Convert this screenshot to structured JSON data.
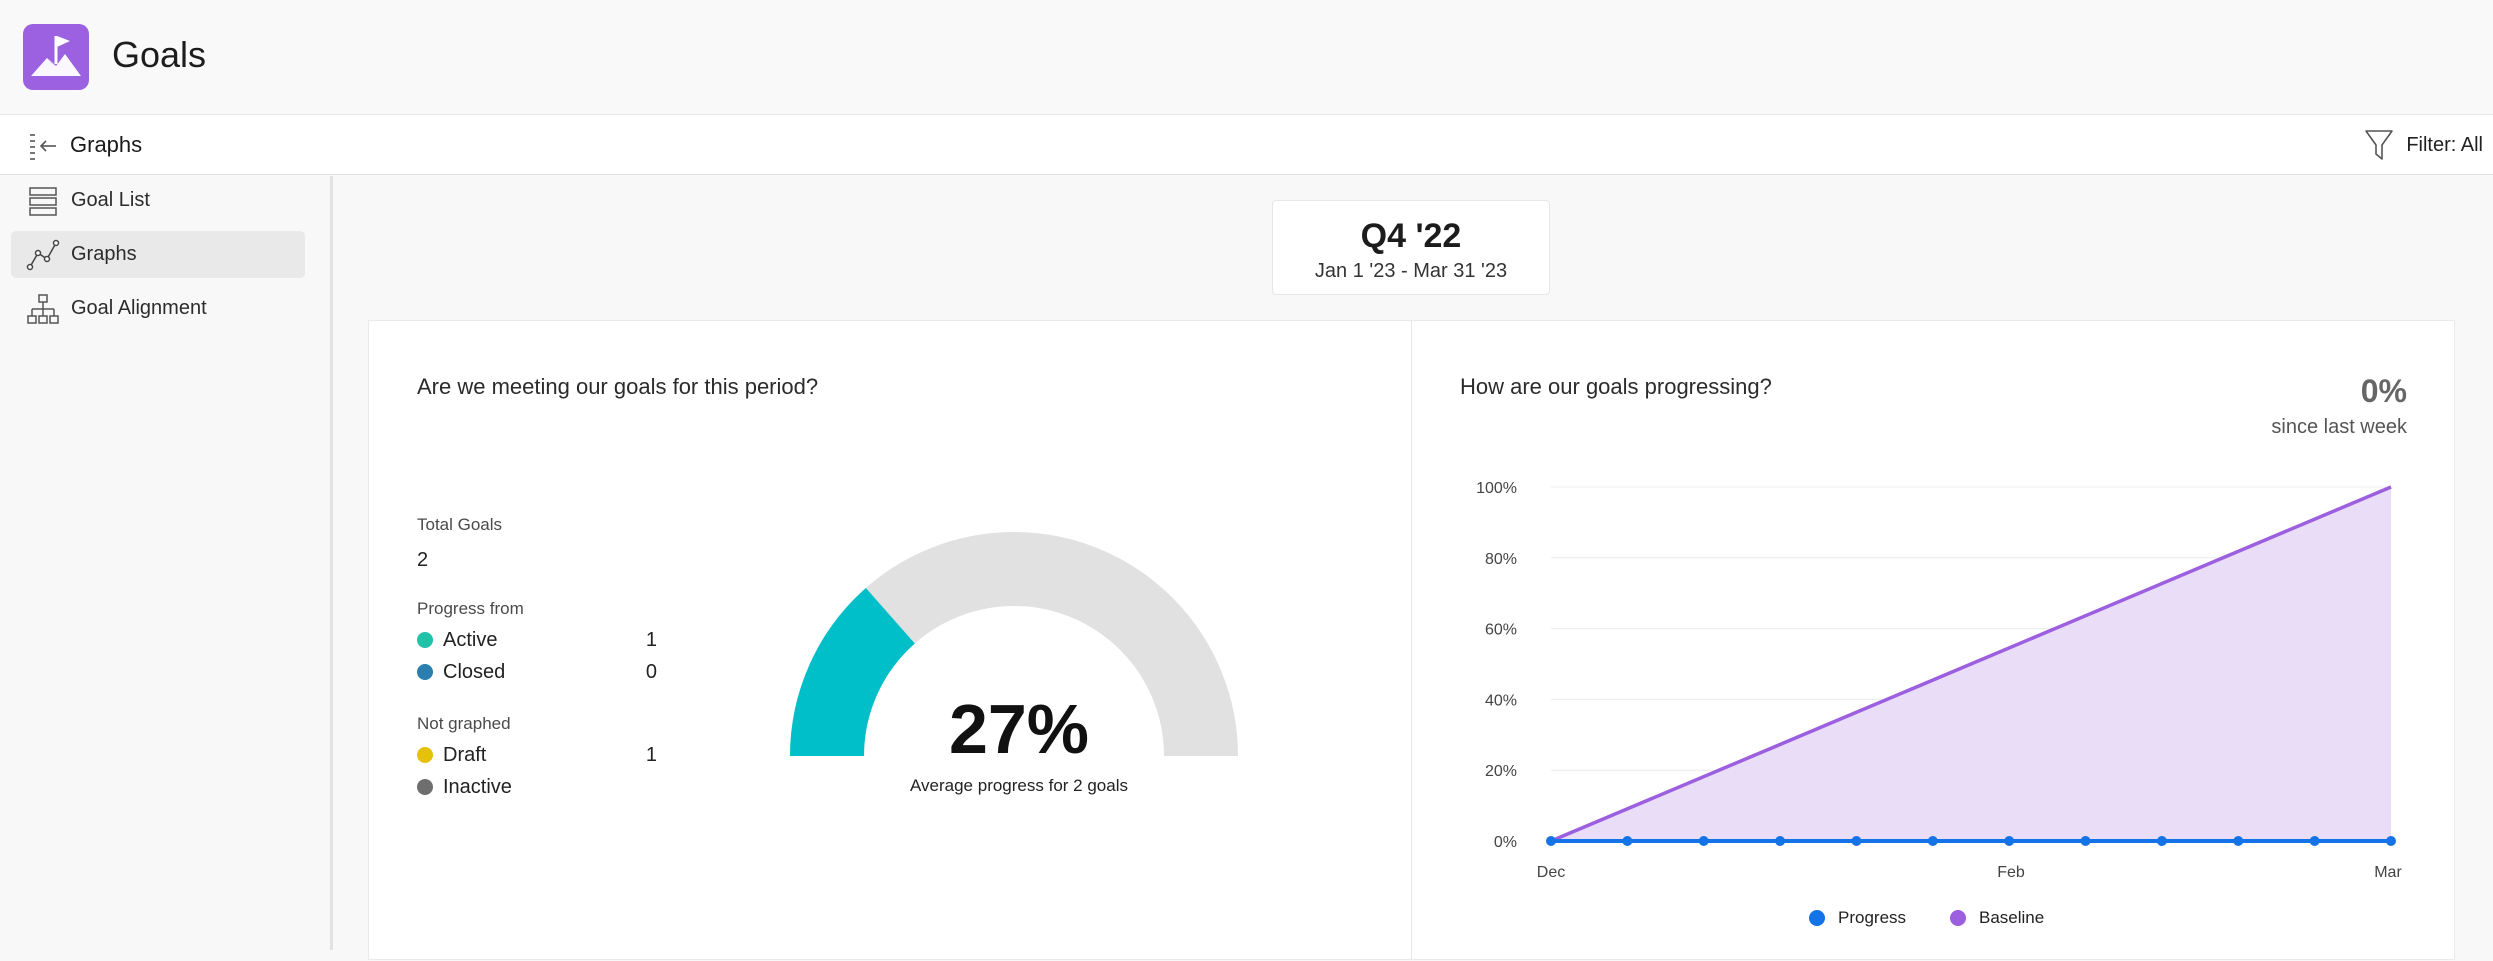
{
  "app": {
    "title": "Goals",
    "icon": "flag-mountain-icon",
    "accent": "#9b61e0"
  },
  "subbar": {
    "title": "Graphs",
    "collapse_icon": "collapse-sidebar-icon",
    "filter_label": "Filter: All",
    "filter_icon": "funnel-icon"
  },
  "sidebar": {
    "items": [
      {
        "label": "Goal List",
        "icon": "list-icon",
        "active": false
      },
      {
        "label": "Graphs",
        "icon": "line-graph-icon",
        "active": true
      },
      {
        "label": "Goal Alignment",
        "icon": "hierarchy-icon",
        "active": false
      }
    ]
  },
  "period": {
    "quarter": "Q4 '22",
    "range": "Jan 1 '23 - Mar 31 '23"
  },
  "meeting": {
    "title": "Are we meeting our goals for this period?",
    "total_label": "Total Goals",
    "total_value": "2",
    "progress_from_label": "Progress from",
    "progress_from": [
      {
        "name": "Active",
        "count": "1",
        "color": "#20c3a8"
      },
      {
        "name": "Closed",
        "count": "0",
        "color": "#2a7fb0"
      }
    ],
    "not_graphed_label": "Not graphed",
    "not_graphed": [
      {
        "name": "Draft",
        "count": "1",
        "color": "#e6c10a"
      },
      {
        "name": "Inactive",
        "count": "",
        "color": "#6e6e6e"
      }
    ],
    "gauge_value": 0.27,
    "gauge_text": "27%",
    "gauge_caption": "Average progress for 2 goals",
    "gauge_fill_color": "#00bfc8",
    "gauge_track_color": "#e1e1e1"
  },
  "progressing": {
    "title": "How are our goals progressing?",
    "change_value": "0%",
    "change_caption": "since last week"
  },
  "chart_data": {
    "type": "area",
    "title": "",
    "xlabel": "",
    "ylabel": "",
    "x_tick_labels": [
      "Dec",
      "Feb",
      "Mar"
    ],
    "y_tick_labels": [
      "0%",
      "20%",
      "40%",
      "60%",
      "80%",
      "100%"
    ],
    "ylim": [
      0,
      100
    ],
    "grid": true,
    "legend_position": "bottom",
    "series": [
      {
        "name": "Progress",
        "type": "line",
        "color": "#1473e6",
        "values": [
          0,
          0,
          0,
          0,
          0,
          0,
          0,
          0,
          0,
          0,
          0,
          0
        ]
      },
      {
        "name": "Baseline",
        "type": "area",
        "color": "#9b5fe0",
        "fill": "#e9ddf7",
        "values": [
          0,
          100
        ]
      }
    ]
  }
}
